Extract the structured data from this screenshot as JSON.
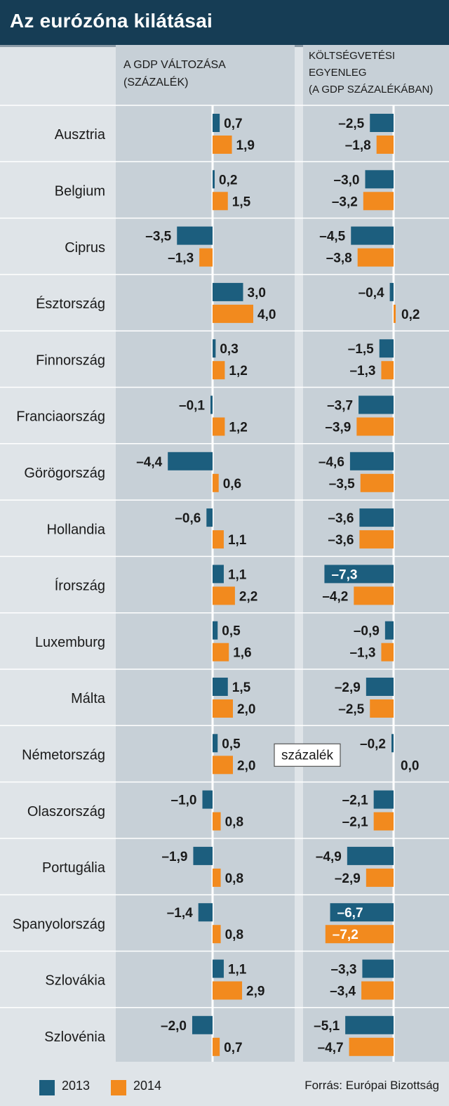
{
  "title": "Az eurózóna kilátásai",
  "panel_gdp_header": [
    "A GDP VÁLTOZÁSA",
    "(SZÁZALÉK)"
  ],
  "panel_budget_header": [
    "KÖLTSÉGVETÉSI",
    "EGYENLEG",
    "(A GDP SZÁZALÉKÁBAN)"
  ],
  "unit_box": "százalék",
  "source": "Forrás: Európai Bizottság",
  "legend": [
    "2013",
    "2014"
  ],
  "colors": {
    "2013": "#1c5e7e",
    "2014": "#f28a1e",
    "header": "#163d55",
    "panel": "#c7d0d7",
    "background": "#dfe4e8"
  },
  "chart_data": [
    {
      "type": "bar",
      "orientation": "horizontal",
      "title": "A GDP VÁLTOZÁSA (SZÁZALÉK)",
      "categories": [
        "Ausztria",
        "Belgium",
        "Ciprus",
        "Észtország",
        "Finnország",
        "Franciaország",
        "Görögország",
        "Hollandia",
        "Írország",
        "Luxemburg",
        "Málta",
        "Németország",
        "Olaszország",
        "Portugália",
        "Spanyolország",
        "Szlovákia",
        "Szlovénia"
      ],
      "series": [
        {
          "name": "2013",
          "values": [
            0.7,
            0.2,
            -3.5,
            3.0,
            0.3,
            -0.1,
            -4.4,
            -0.6,
            1.1,
            0.5,
            1.5,
            0.5,
            -1.0,
            -1.9,
            -1.4,
            1.1,
            -2.0
          ],
          "labels": [
            "0,7",
            "0,2",
            "–3,5",
            "3,0",
            "0,3",
            "–0,1",
            "–4,4",
            "–0,6",
            "1,1",
            "0,5",
            "1,5",
            "0,5",
            "–1,0",
            "–1,9",
            "–1,4",
            "1,1",
            "–2,0"
          ]
        },
        {
          "name": "2014",
          "values": [
            1.9,
            1.5,
            -1.3,
            4.0,
            1.2,
            1.2,
            0.6,
            1.1,
            2.2,
            1.6,
            2.0,
            2.0,
            0.8,
            0.8,
            0.8,
            2.9,
            0.7
          ],
          "labels": [
            "1,9",
            "1,5",
            "–1,3",
            "4,0",
            "1,2",
            "1,2",
            "0,6",
            "1,1",
            "2,2",
            "1,6",
            "2,0",
            "2,0",
            "0,8",
            "0,8",
            "0,8",
            "2,9",
            "0,7"
          ]
        }
      ]
    },
    {
      "type": "bar",
      "orientation": "horizontal",
      "title": "KÖLTSÉGVETÉSI EGYENLEG (A GDP SZÁZALÉKÁBAN)",
      "categories": [
        "Ausztria",
        "Belgium",
        "Ciprus",
        "Észtország",
        "Finnország",
        "Franciaország",
        "Görögország",
        "Hollandia",
        "Írország",
        "Luxemburg",
        "Málta",
        "Németország",
        "Olaszország",
        "Portugália",
        "Spanyolország",
        "Szlovákia",
        "Szlovénia"
      ],
      "series": [
        {
          "name": "2013",
          "values": [
            -2.5,
            -3.0,
            -4.5,
            -0.4,
            -1.5,
            -3.7,
            -4.6,
            -3.6,
            -7.3,
            -0.9,
            -2.9,
            -0.2,
            -2.1,
            -4.9,
            -6.7,
            -3.3,
            -5.1
          ],
          "labels": [
            "–2,5",
            "–3,0",
            "–4,5",
            "–0,4",
            "–1,5",
            "–3,7",
            "–4,6",
            "–3,6",
            "–7,3",
            "–0,9",
            "–2,9",
            "–0,2",
            "–2,1",
            "–4,9",
            "–6,7",
            "–3,3",
            "–5,1"
          ]
        },
        {
          "name": "2014",
          "values": [
            -1.8,
            -3.2,
            -3.8,
            0.2,
            -1.3,
            -3.9,
            -3.5,
            -3.6,
            -4.2,
            -1.3,
            -2.5,
            0.0,
            -2.1,
            -2.9,
            -7.2,
            -3.4,
            -4.7
          ],
          "labels": [
            "–1,8",
            "–3,2",
            "–3,8",
            "0,2",
            "–1,3",
            "–3,9",
            "–3,5",
            "–3,6",
            "–4,2",
            "–1,3",
            "–2,5",
            "0,0",
            "–2,1",
            "–2,9",
            "–7,2",
            "–3,4",
            "–4,7"
          ]
        }
      ]
    }
  ]
}
